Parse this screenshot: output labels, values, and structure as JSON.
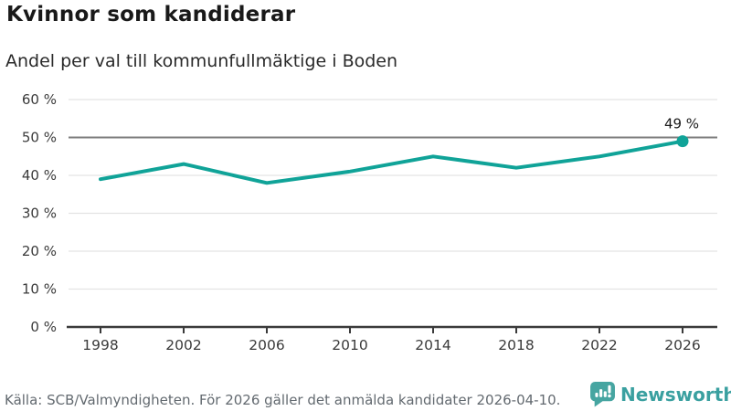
{
  "header": {
    "title": "Kvinnor som kandiderar",
    "subtitle": "Andel per val till kommunfullmäktige i Boden"
  },
  "chart_data": {
    "type": "line",
    "title": "Kvinnor som kandiderar",
    "subtitle": "Andel per val till kommunfullmäktige i Boden",
    "x": [
      1998,
      2002,
      2006,
      2010,
      2014,
      2018,
      2022,
      2026
    ],
    "values": [
      39,
      43,
      38,
      41,
      45,
      42,
      45,
      49
    ],
    "unit": "%",
    "ylim": [
      0,
      60
    ],
    "yticks": [
      0,
      10,
      20,
      30,
      40,
      50,
      60
    ],
    "ytick_suffix": " %",
    "xlabel": "",
    "ylabel": "",
    "grid": true,
    "legend": "none",
    "reference_line": 50,
    "last_point_label": "49 %",
    "colors": {
      "line": "#10a398",
      "reference": "#7d7d7d",
      "grid": "#e3e3e3",
      "axis": "#3a3a3a",
      "tick_text": "#3b3b3b",
      "annotation": "#1a1a1a"
    }
  },
  "footer": {
    "source": "Källa: SCB/Valmyndigheten. För 2026 gäller det anmälda kandidater 2026-04-10.",
    "brand": {
      "name": "Newsworthy",
      "color": "#3aa0a0",
      "icon": "newsworthy-speech-bubble-barchart-icon",
      "icon_color": "#46a5a1"
    }
  }
}
